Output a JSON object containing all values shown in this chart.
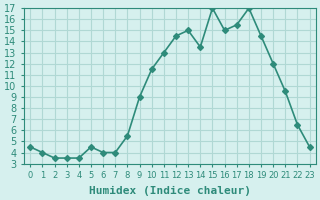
{
  "xlabel": "Humidex (Indice chaleur)",
  "ylabel": "",
  "x": [
    0,
    1,
    2,
    3,
    4,
    5,
    6,
    7,
    8,
    9,
    10,
    11,
    12,
    13,
    14,
    15,
    16,
    17,
    18,
    19,
    20,
    21,
    22,
    23
  ],
  "y": [
    4.5,
    4.0,
    3.5,
    3.5,
    3.5,
    4.5,
    4.0,
    4.0,
    5.5,
    9.0,
    11.5,
    13.0,
    14.5,
    15.0,
    13.5,
    17.0,
    15.0,
    15.5,
    17.0,
    14.5,
    12.0,
    9.5,
    6.5,
    4.5
  ],
  "line_color": "#2e8b7a",
  "marker": "D",
  "marker_size": 3,
  "bg_color": "#d6f0ee",
  "grid_color": "#b0d8d4",
  "tick_color": "#2e8b7a",
  "xlim": [
    -0.5,
    23.5
  ],
  "ylim": [
    3,
    17
  ],
  "yticks": [
    3,
    4,
    5,
    6,
    7,
    8,
    9,
    10,
    11,
    12,
    13,
    14,
    15,
    16,
    17
  ],
  "xtick_labels": [
    "0",
    "1",
    "2",
    "3",
    "4",
    "5",
    "6",
    "7",
    "8",
    "9",
    "10",
    "11",
    "12",
    "13",
    "14",
    "15",
    "16",
    "17",
    "18",
    "19",
    "20",
    "21",
    "22",
    "23"
  ],
  "title_fontsize": 7,
  "label_fontsize": 8,
  "tick_fontsize": 7
}
